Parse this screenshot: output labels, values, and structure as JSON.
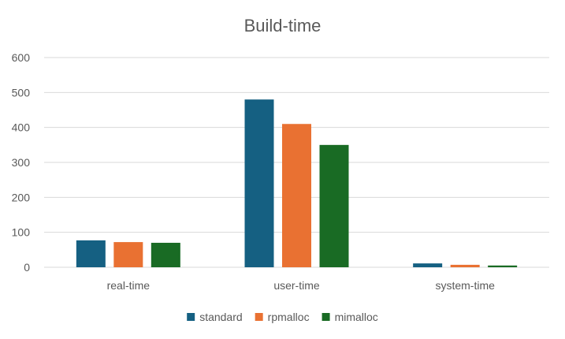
{
  "chart_data": {
    "type": "bar",
    "title": "Build-time",
    "xlabel": "",
    "ylabel": "",
    "categories": [
      "real-time",
      "user-time",
      "system-time"
    ],
    "series": [
      {
        "name": "standard",
        "color": "#156082",
        "values": [
          77,
          480,
          11
        ]
      },
      {
        "name": "rpmalloc",
        "color": "#E97132",
        "values": [
          72,
          410,
          7
        ]
      },
      {
        "name": "mimalloc",
        "color": "#196B24",
        "values": [
          70,
          350,
          5
        ]
      }
    ],
    "ylim": [
      0,
      600
    ],
    "yticks": [
      "0",
      "100",
      "200",
      "300",
      "400",
      "500",
      "600"
    ],
    "grid": true,
    "legend_position": "bottom"
  }
}
